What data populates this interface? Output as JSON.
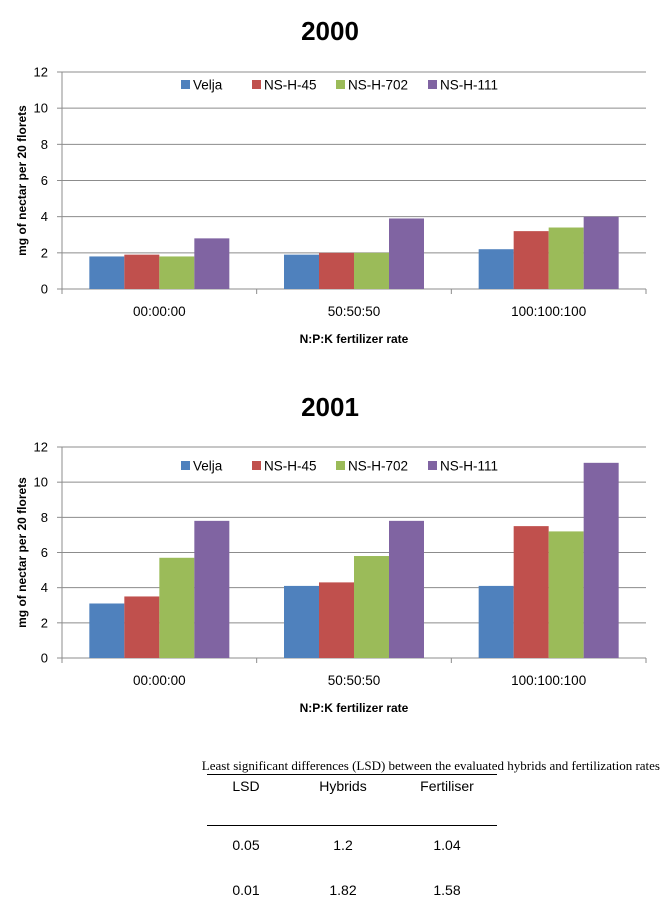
{
  "chart_data": [
    {
      "type": "bar",
      "title": "2000",
      "xlabel": "N:P:K fertilizer rate",
      "ylabel": "mg of nectar per 20 florets",
      "ylim": [
        0,
        12
      ],
      "yticks": [
        0,
        2,
        4,
        6,
        8,
        10,
        12
      ],
      "grid": true,
      "legend": "top-center",
      "categories": [
        "00:00:00",
        "50:50:50",
        "100:100:100"
      ],
      "series": [
        {
          "name": "Velja",
          "color": "#4F81BD",
          "values": [
            1.8,
            1.9,
            2.2
          ]
        },
        {
          "name": "NS-H-45",
          "color": "#C0504D",
          "values": [
            1.9,
            2.0,
            3.2
          ]
        },
        {
          "name": "NS-H-702",
          "color": "#9BBB59",
          "values": [
            1.8,
            2.0,
            3.4
          ]
        },
        {
          "name": "NS-H-111",
          "color": "#8064A2",
          "values": [
            2.8,
            3.9,
            4.0
          ]
        }
      ]
    },
    {
      "type": "bar",
      "title": "2001",
      "xlabel": "N:P:K fertilizer rate",
      "ylabel": "mg of nectar per 20 florets",
      "ylim": [
        0,
        12
      ],
      "yticks": [
        0,
        2,
        4,
        6,
        8,
        10,
        12
      ],
      "grid": true,
      "legend": "top-center",
      "categories": [
        "00:00:00",
        "50:50:50",
        "100:100:100"
      ],
      "series": [
        {
          "name": "Velja",
          "color": "#4F81BD",
          "values": [
            3.1,
            4.1,
            4.1
          ]
        },
        {
          "name": "NS-H-45",
          "color": "#C0504D",
          "values": [
            3.5,
            4.3,
            7.5
          ]
        },
        {
          "name": "NS-H-702",
          "color": "#9BBB59",
          "values": [
            5.7,
            5.8,
            7.2
          ]
        },
        {
          "name": "NS-H-111",
          "color": "#8064A2",
          "values": [
            7.8,
            7.8,
            11.1
          ]
        }
      ]
    }
  ],
  "lsd_table": {
    "caption": "Least significant differences (LSD) between the evaluated hybrids and fertilization rates",
    "headers": [
      "LSD",
      "Hybrids",
      "Fertiliser"
    ],
    "rows": [
      [
        "0.05",
        "1.2",
        "1.04"
      ],
      [
        "0.01",
        "1.82",
        "1.58"
      ]
    ]
  }
}
